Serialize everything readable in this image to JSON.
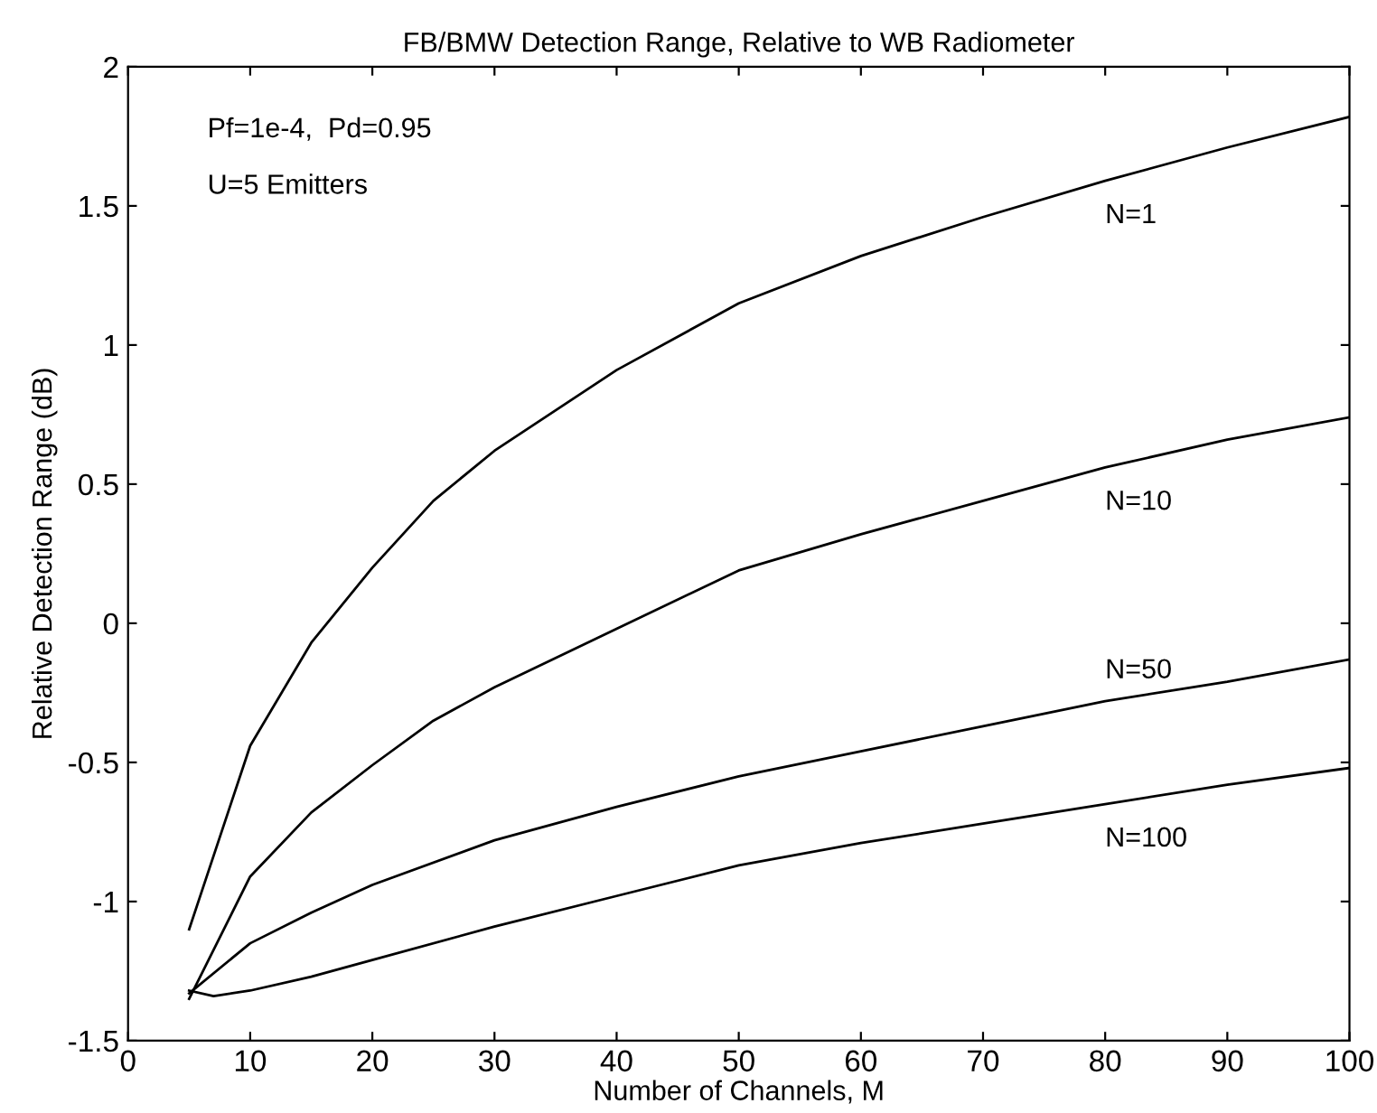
{
  "chart_data": {
    "type": "line",
    "title": "FB/BMW Detection Range, Relative to WB Radiometer",
    "xlabel": "Number of Channels, M",
    "ylabel": "Relative Detection Range (dB)",
    "annotations": [
      "Pf=1e-4,  Pd=0.95",
      "U=5 Emitters"
    ],
    "xlim": [
      0,
      100
    ],
    "xticks": [
      0,
      10,
      20,
      30,
      40,
      50,
      60,
      70,
      80,
      90,
      100
    ],
    "ylim": [
      -1.5,
      2
    ],
    "yticks": [
      -1.5,
      -1,
      -0.5,
      0,
      0.5,
      1,
      1.5,
      2
    ],
    "grid": false,
    "legend": false,
    "marker": "none",
    "line_style": "solid",
    "series": [
      {
        "name": "N=1",
        "color": "#000000",
        "x": [
          5,
          10,
          15,
          20,
          25,
          30,
          40,
          50,
          60,
          70,
          80,
          90,
          100
        ],
        "values": [
          -1.1,
          -0.44,
          -0.07,
          0.2,
          0.44,
          0.62,
          0.91,
          1.15,
          1.32,
          1.46,
          1.59,
          1.71,
          1.82
        ]
      },
      {
        "name": "N=10",
        "color": "#000000",
        "x": [
          5,
          10,
          15,
          20,
          25,
          30,
          40,
          50,
          60,
          70,
          80,
          90,
          100
        ],
        "values": [
          -1.35,
          -0.91,
          -0.68,
          -0.51,
          -0.35,
          -0.23,
          -0.02,
          0.19,
          0.32,
          0.44,
          0.56,
          0.66,
          0.74
        ]
      },
      {
        "name": "N=50",
        "color": "#000000",
        "x": [
          5,
          10,
          15,
          20,
          30,
          40,
          50,
          60,
          70,
          80,
          90,
          100
        ],
        "values": [
          -1.33,
          -1.15,
          -1.04,
          -0.94,
          -0.78,
          -0.66,
          -0.55,
          -0.46,
          -0.37,
          -0.28,
          -0.21,
          -0.13
        ]
      },
      {
        "name": "N=100",
        "color": "#000000",
        "x": [
          5,
          7,
          10,
          15,
          20,
          30,
          40,
          50,
          60,
          70,
          80,
          90,
          100
        ],
        "values": [
          -1.32,
          -1.34,
          -1.32,
          -1.27,
          -1.21,
          -1.09,
          -0.98,
          -0.87,
          -0.79,
          -0.72,
          -0.65,
          -0.58,
          -0.52
        ]
      }
    ]
  }
}
